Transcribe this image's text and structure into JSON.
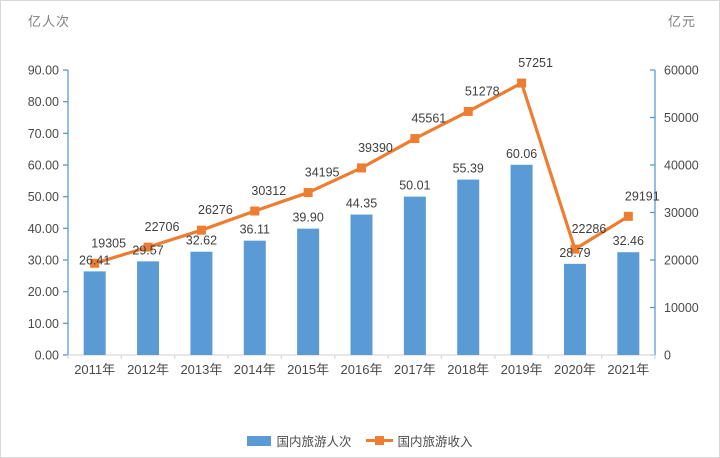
{
  "chart_data": {
    "type": "combo-bar-line",
    "title": "",
    "categories": [
      "2011年",
      "2012年",
      "2013年",
      "2014年",
      "2015年",
      "2016年",
      "2017年",
      "2018年",
      "2019年",
      "2020年",
      "2021年"
    ],
    "series": [
      {
        "name": "国内旅游人次",
        "type": "bar",
        "axis": "left",
        "color": "#5B9BD5",
        "values": [
          26.41,
          29.57,
          32.62,
          36.11,
          39.9,
          44.35,
          50.01,
          55.39,
          60.06,
          28.79,
          32.46
        ],
        "labels": [
          "26.41",
          "29.57",
          "32.62",
          "36.11",
          "39.90",
          "44.35",
          "50.01",
          "55.39",
          "60.06",
          "28.79",
          "32.46"
        ]
      },
      {
        "name": "国内旅游收入",
        "type": "line",
        "axis": "right",
        "color": "#ED7D31",
        "values": [
          19305,
          22706,
          26276,
          30312,
          34195,
          39390,
          45561,
          51278,
          57251,
          22286,
          29191
        ],
        "labels": [
          "19305",
          "22706",
          "26276",
          "30312",
          "34195",
          "39390",
          "45561",
          "51278",
          "57251",
          "22286",
          "29191"
        ]
      }
    ],
    "left_axis": {
      "title": "亿人次",
      "min": 0,
      "max": 90,
      "ticks": [
        "0.00",
        "10.00",
        "20.00",
        "30.00",
        "40.00",
        "50.00",
        "60.00",
        "70.00",
        "80.00",
        "90.00"
      ]
    },
    "right_axis": {
      "title": "亿元",
      "min": 0,
      "max": 60000,
      "ticks": [
        "0",
        "10000",
        "20000",
        "30000",
        "40000",
        "50000",
        "60000"
      ]
    },
    "legend_position": "bottom",
    "grid": false
  },
  "colors": {
    "bar": "#5B9BD5",
    "line": "#ED7D31",
    "vertical_axis": "#5B9BD5",
    "bottom_axis": "#d9d9d9",
    "tick_text": "#4a4a4a",
    "data_label_text": "#3f3f3f",
    "axis_title_text": "#7f7f7f"
  }
}
